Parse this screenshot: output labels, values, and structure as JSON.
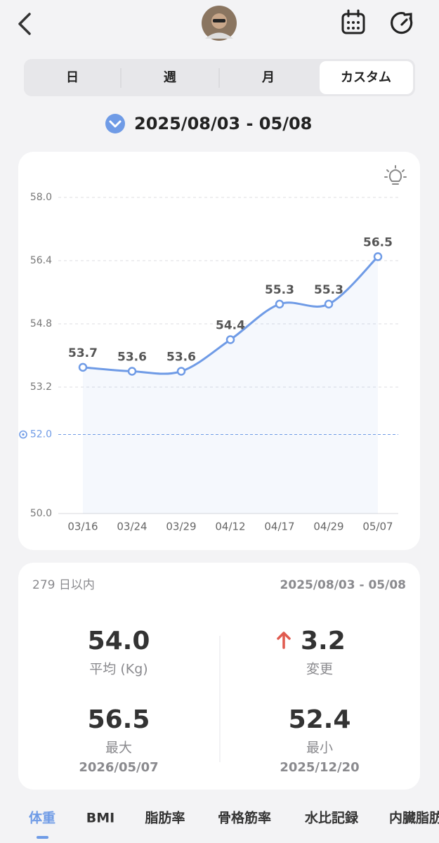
{
  "tabs": [
    "日",
    "週",
    "月",
    "カスタム"
  ],
  "date_range": "2025/08/03 - 05/08",
  "chart_data": {
    "type": "line",
    "categories": [
      "03/16",
      "03/24",
      "03/29",
      "04/12",
      "04/17",
      "04/29",
      "05/07"
    ],
    "values": [
      53.7,
      53.6,
      53.6,
      54.4,
      55.3,
      55.3,
      56.5
    ],
    "color": "#6f9be6",
    "ylim": [
      50,
      58
    ],
    "yticks": [
      {
        "value": 50,
        "label": "50.0"
      },
      {
        "value": 53.2,
        "label": "53.2"
      },
      {
        "value": 54.8,
        "label": "54.8"
      },
      {
        "value": 56.4,
        "label": "56.4"
      },
      {
        "value": 58,
        "label": "58.0"
      }
    ],
    "grid": true,
    "goal_line": {
      "value": 52,
      "label": "52.0"
    }
  },
  "summary": {
    "period": "279 日以内",
    "date_range": "2025/08/03 - 05/08",
    "average": {
      "value": "54.0",
      "label": "平均 (Kg)"
    },
    "change": {
      "value": "3.2",
      "label": "変更"
    },
    "max": {
      "value": "56.5",
      "label": "最大",
      "date": "2026/05/07"
    },
    "min": {
      "value": "52.4",
      "label": "最小",
      "date": "2025/12/20"
    }
  },
  "bottom_tabs": [
    "体重",
    "BMI",
    "脂肪率",
    "骨格筋率",
    "水比記録",
    "内臓脂肪"
  ]
}
